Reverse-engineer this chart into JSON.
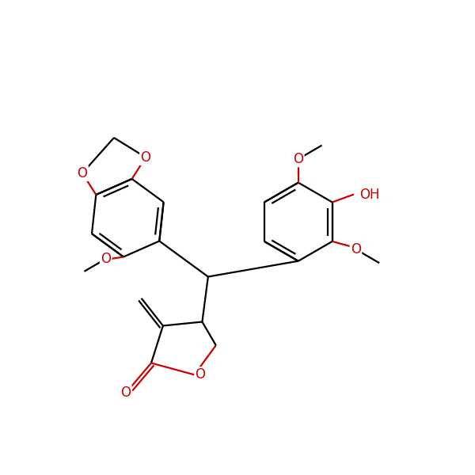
{
  "bg_color": "#ffffff",
  "bond_color": "#000000",
  "heteroatom_color": "#cc0000",
  "line_width": 1.6,
  "font_size": 12,
  "figsize": [
    6.0,
    6.0
  ],
  "dpi": 100,
  "xlim": [
    0,
    12
  ],
  "ylim": [
    0,
    12
  ]
}
